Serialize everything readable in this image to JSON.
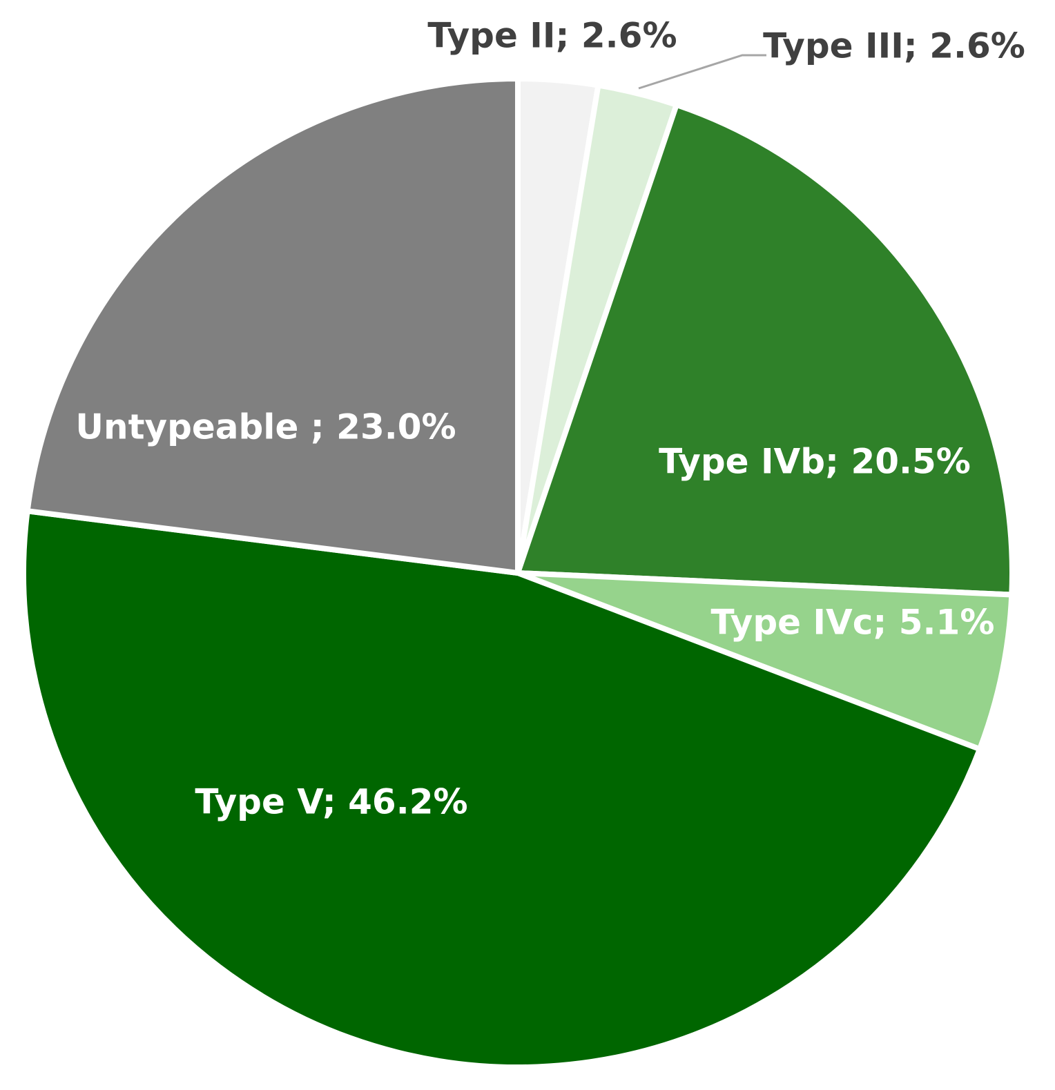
{
  "chart_data": {
    "type": "pie",
    "values": [
      2.6,
      2.6,
      20.5,
      5.1,
      46.2,
      23.0
    ],
    "value_labels": [
      "Type II; 2.6%",
      "Type III; 2.6%",
      "Type IVb; 20.5%",
      "Type IVc; 5.1%",
      "Type V; 46.2%",
      "Untypeable ; 23.0%"
    ],
    "colors": [
      "#f2f2f2",
      "#dcefd9",
      "#2f8129",
      "#96d38c",
      "#006600",
      "#808080"
    ]
  }
}
